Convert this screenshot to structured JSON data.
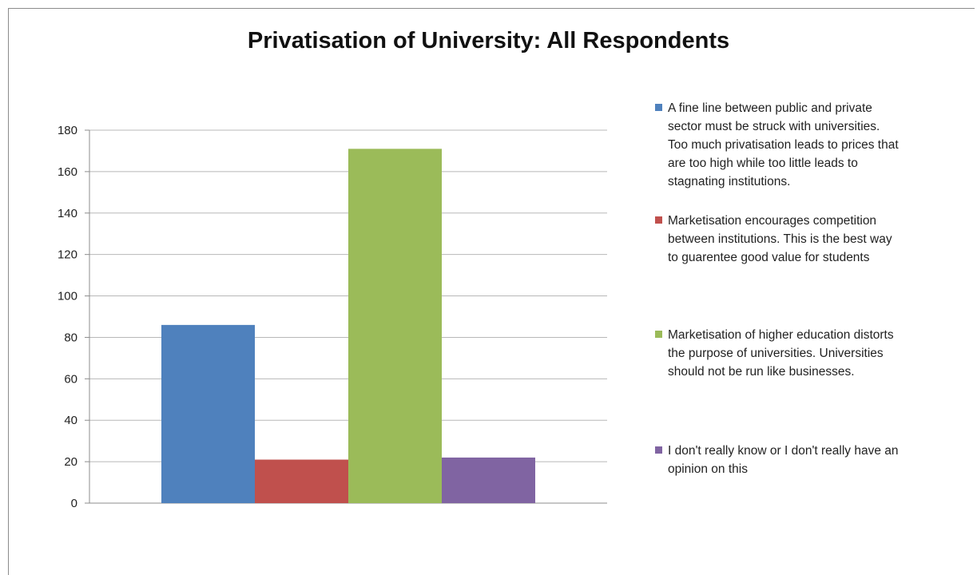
{
  "chart_data": {
    "type": "bar",
    "title": "Privatisation of University: All Respondents",
    "categories": [
      ""
    ],
    "series": [
      {
        "name": "A fine line between public and private sector must be struck with universities. Too much privatisation leads to prices that are too high while too little leads to stagnating institutions.",
        "values": [
          86
        ],
        "color": "#4f81bd"
      },
      {
        "name": "Marketisation encourages competition between institutions. This is the best way to guarentee good value for students",
        "values": [
          21
        ],
        "color": "#c0504d"
      },
      {
        "name": "Marketisation of higher education distorts the purpose of universities.  Universities should not be run like businesses.",
        "values": [
          171
        ],
        "color": "#9bbb59"
      },
      {
        "name": "I don't really know or I don't really have an opinion on this",
        "values": [
          22
        ],
        "color": "#8064a2"
      }
    ],
    "xlabel": "",
    "ylabel": "",
    "ylim": [
      0,
      180
    ],
    "yticks": [
      "0",
      "20",
      "40",
      "60",
      "80",
      "100",
      "120",
      "140",
      "160",
      "180"
    ],
    "grid": true,
    "legend_position": "right"
  },
  "legend_lines": [
    "A fine line between public and private\nsector must be struck with universities.\nToo much privatisation leads to prices that\nare too high while too little leads to\nstagnating institutions.",
    "Marketisation encourages competition\nbetween institutions. This is the best way\nto guarentee good value for students",
    "Marketisation of higher education distorts\nthe purpose of universities.  Universities\nshould not be run like businesses.",
    "I don't really know or I don't really have an\nopinion on this"
  ]
}
